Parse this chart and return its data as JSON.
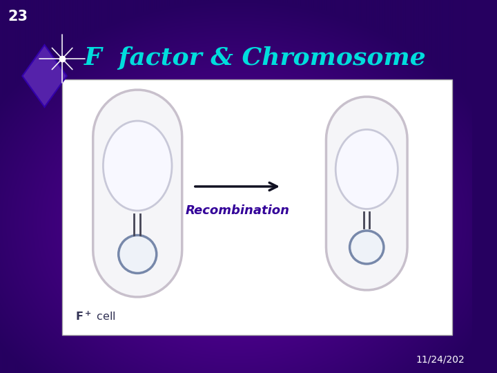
{
  "bg_color_center": "#6600aa",
  "bg_color_edge": "#260060",
  "slide_number": "23",
  "title": "F  factor & Chromosome",
  "subtitle": "Recombination",
  "date_text": "11/24/202",
  "title_color": "#00dddd",
  "slide_num_color": "#ffffff",
  "subtitle_color": "#330099",
  "date_color": "#ffffff",
  "cell_fill": "#f5f5f8",
  "cell_border": "#c8c0cc",
  "chrom_fill": "#f8f8ff",
  "chrom_border": "#c8c8d8",
  "plasmid_fill": "#eef2f8",
  "plasmid_border": "#7788aa",
  "connector_color": "#444455",
  "arrow_color": "#111122",
  "label_color": "#333355",
  "img_bg": "#ffffff"
}
